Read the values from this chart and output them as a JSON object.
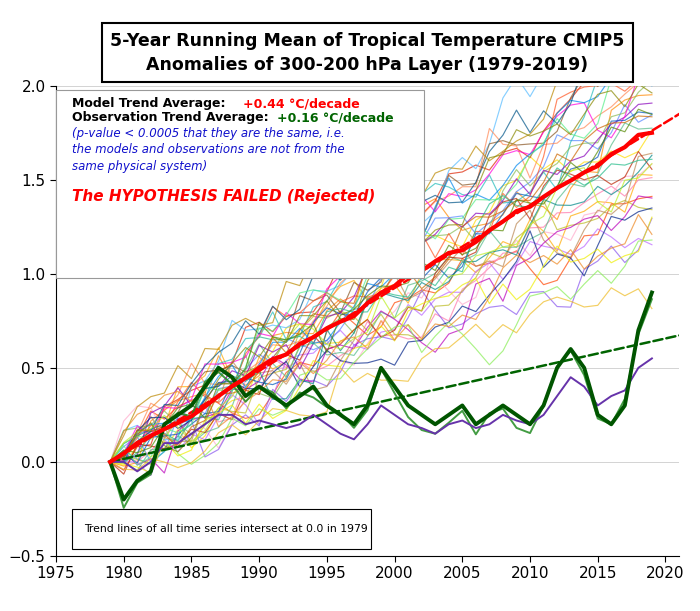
{
  "title": "5-Year Running Mean of Tropical Temperature CMIP5\nAnomalies of 300-200 hPa Layer (1979-2019)",
  "xlim": [
    1975,
    2021
  ],
  "ylim": [
    -0.5,
    2.0
  ],
  "xticks": [
    1975,
    1980,
    1985,
    1990,
    1995,
    2000,
    2005,
    2010,
    2015,
    2020
  ],
  "yticks": [
    -0.5,
    0.0,
    0.5,
    1.0,
    1.5,
    2.0
  ],
  "note_text": "Trend lines of all time series intersect at 0.0 in 1979",
  "model_trend_per_decade": 0.44,
  "obs_trend_per_decade": 0.16,
  "model_line_color": "#FF0000",
  "obs_line_color": "#006400",
  "background_color": "#FFFFFF",
  "model_colors": [
    "#FF8800",
    "#FFAA00",
    "#FFDD00",
    "#FF4400",
    "#DD2200",
    "#FF77AA",
    "#FFAACC",
    "#BB66FF",
    "#8855EE",
    "#5588FF",
    "#55BBFF",
    "#22BBBB",
    "#55BB88",
    "#88BB55",
    "#BBBB22",
    "#885522",
    "#BB8855",
    "#FF8855",
    "#FF5522",
    "#BB2200",
    "#8800BB",
    "#BB00BB",
    "#FF00DD",
    "#0088EE",
    "#0055BB",
    "#002288",
    "#005588",
    "#008888",
    "#22BB88",
    "#55EE88",
    "#88EE55",
    "#BBEE22",
    "#EEEE00",
    "#EEBB22",
    "#EE8822",
    "#CC6600",
    "#BB8800",
    "#888800",
    "#558800"
  ]
}
